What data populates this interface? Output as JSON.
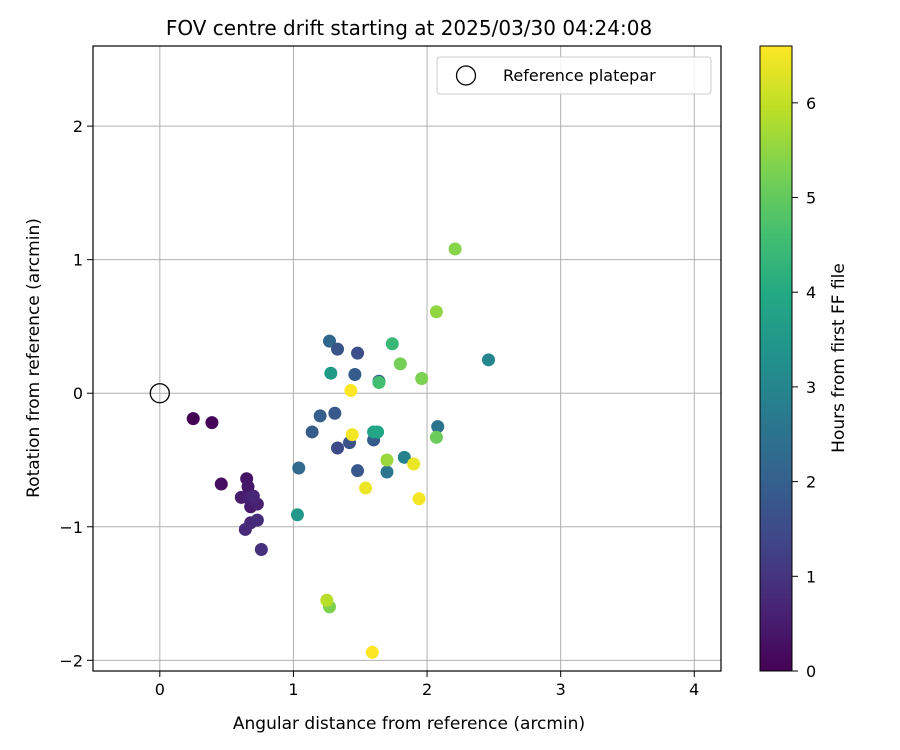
{
  "chart_data": {
    "type": "scatter",
    "title": "FOV centre drift starting at 2025/03/30 04:24:08",
    "xlabel": "Angular distance from reference (arcmin)",
    "ylabel": "Rotation from reference (arcmin)",
    "xlim": [
      -0.5,
      4.2
    ],
    "ylim": [
      -2.08,
      2.6
    ],
    "xticks": [
      0,
      1,
      2,
      3,
      4
    ],
    "yticks": [
      -2,
      -1,
      0,
      1,
      2
    ],
    "grid": true,
    "legend": {
      "location": "upper right",
      "entries": [
        "Reference platepar"
      ]
    },
    "reference_point": {
      "x": 0,
      "y": 0,
      "label": "Reference platepar"
    },
    "colorbar": {
      "label": "Hours from first FF file",
      "colormap": "viridis",
      "range": [
        0,
        6.6
      ],
      "ticks": [
        0,
        1,
        2,
        3,
        4,
        5,
        6
      ]
    },
    "points": [
      {
        "x": 0.25,
        "y": -0.19,
        "c": 0.0
      },
      {
        "x": 0.39,
        "y": -0.22,
        "c": 0.1
      },
      {
        "x": 0.46,
        "y": -0.68,
        "c": 0.25
      },
      {
        "x": 0.65,
        "y": -0.64,
        "c": 0.35
      },
      {
        "x": 0.66,
        "y": -0.7,
        "c": 0.4
      },
      {
        "x": 0.61,
        "y": -0.78,
        "c": 0.5
      },
      {
        "x": 0.68,
        "y": -0.85,
        "c": 0.45
      },
      {
        "x": 0.67,
        "y": -0.79,
        "c": 0.55
      },
      {
        "x": 0.73,
        "y": -0.83,
        "c": 0.6
      },
      {
        "x": 0.7,
        "y": -0.77,
        "c": 0.7
      },
      {
        "x": 0.68,
        "y": -0.97,
        "c": 0.75
      },
      {
        "x": 0.64,
        "y": -1.02,
        "c": 0.8
      },
      {
        "x": 0.73,
        "y": -0.95,
        "c": 0.85
      },
      {
        "x": 0.76,
        "y": -1.17,
        "c": 0.9
      },
      {
        "x": 1.04,
        "y": -0.56,
        "c": 2.3
      },
      {
        "x": 1.14,
        "y": -0.29,
        "c": 1.9
      },
      {
        "x": 1.2,
        "y": -0.17,
        "c": 2.0
      },
      {
        "x": 1.27,
        "y": 0.39,
        "c": 2.2
      },
      {
        "x": 1.33,
        "y": 0.33,
        "c": 1.7
      },
      {
        "x": 1.31,
        "y": -0.15,
        "c": 1.8
      },
      {
        "x": 1.33,
        "y": -0.41,
        "c": 1.5
      },
      {
        "x": 1.42,
        "y": -0.37,
        "c": 1.7
      },
      {
        "x": 1.46,
        "y": 0.14,
        "c": 1.9
      },
      {
        "x": 1.48,
        "y": 0.3,
        "c": 1.6
      },
      {
        "x": 1.48,
        "y": -0.58,
        "c": 1.8
      },
      {
        "x": 1.6,
        "y": -0.35,
        "c": 1.9
      },
      {
        "x": 1.64,
        "y": 0.09,
        "c": 2.1
      },
      {
        "x": 1.7,
        "y": -0.59,
        "c": 2.6
      },
      {
        "x": 1.83,
        "y": -0.48,
        "c": 2.9
      },
      {
        "x": 2.08,
        "y": -0.25,
        "c": 2.5
      },
      {
        "x": 2.46,
        "y": 0.25,
        "c": 3.0
      },
      {
        "x": 1.03,
        "y": -0.91,
        "c": 3.5
      },
      {
        "x": 1.28,
        "y": 0.15,
        "c": 3.6
      },
      {
        "x": 1.6,
        "y": -0.29,
        "c": 3.8
      },
      {
        "x": 1.63,
        "y": -0.29,
        "c": 3.9
      },
      {
        "x": 1.74,
        "y": 0.37,
        "c": 4.4
      },
      {
        "x": 1.64,
        "y": 0.08,
        "c": 4.6
      },
      {
        "x": 1.8,
        "y": 0.22,
        "c": 5.2
      },
      {
        "x": 1.96,
        "y": 0.11,
        "c": 5.3
      },
      {
        "x": 2.07,
        "y": 0.61,
        "c": 5.5
      },
      {
        "x": 2.21,
        "y": 1.08,
        "c": 5.4
      },
      {
        "x": 2.07,
        "y": -0.33,
        "c": 5.1
      },
      {
        "x": 1.27,
        "y": -1.6,
        "c": 5.3
      },
      {
        "x": 1.7,
        "y": -0.5,
        "c": 5.6
      },
      {
        "x": 1.25,
        "y": -1.55,
        "c": 5.9
      },
      {
        "x": 1.43,
        "y": 0.02,
        "c": 6.6
      },
      {
        "x": 1.44,
        "y": -0.31,
        "c": 6.5
      },
      {
        "x": 1.54,
        "y": -0.71,
        "c": 6.4
      },
      {
        "x": 1.9,
        "y": -0.53,
        "c": 6.4
      },
      {
        "x": 1.94,
        "y": -0.79,
        "c": 6.5
      },
      {
        "x": 1.59,
        "y": -1.94,
        "c": 6.6
      }
    ]
  }
}
